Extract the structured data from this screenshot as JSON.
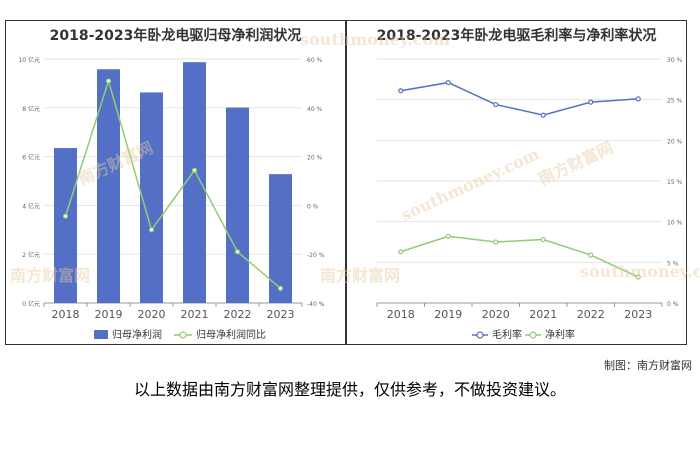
{
  "charts": [
    {
      "title": "2018-2023年卧龙电驱归母净利润状况",
      "chart_data": {
        "type": "bar",
        "categories": [
          "2018",
          "2019",
          "2020",
          "2021",
          "2022",
          "2023"
        ],
        "series": [
          {
            "name": "归母净利润",
            "type": "bar",
            "axis": "left",
            "values": [
              6.35,
              9.58,
              8.63,
              9.87,
              8.01,
              5.28
            ],
            "color": "#5470c6"
          },
          {
            "name": "归母净利润同比",
            "type": "line",
            "axis": "right",
            "values": [
              -4.4,
              51.0,
              -10.0,
              14.4,
              -19.0,
              -34.0
            ],
            "color": "#91cc75"
          }
        ],
        "left_axis": {
          "ticks": [
            "0 亿元",
            "2 亿元",
            "4 亿元",
            "6 亿元",
            "8 亿元",
            "10 亿元"
          ],
          "ylim": [
            0,
            10
          ]
        },
        "right_axis": {
          "ticks": [
            "-40 %",
            "-20 %",
            "0 %",
            "20 %",
            "40 %",
            "60 %"
          ],
          "ylim": [
            -40,
            60
          ]
        },
        "legend_position": "bottom-center",
        "grid": true
      }
    },
    {
      "title": "2018-2023年卧龙电驱毛利率与净利率状况",
      "chart_data": {
        "type": "line",
        "categories": [
          "2018",
          "2019",
          "2020",
          "2021",
          "2022",
          "2023"
        ],
        "series": [
          {
            "name": "毛利率",
            "values": [
              26.1,
              27.1,
              24.4,
              23.1,
              24.7,
              25.1
            ],
            "color": "#5470c6"
          },
          {
            "name": "净利率",
            "values": [
              6.3,
              8.2,
              7.5,
              7.8,
              5.9,
              3.2
            ],
            "color": "#91cc75"
          }
        ],
        "right_axis": {
          "ticks": [
            "0 %",
            "5 %",
            "10 %",
            "15 %",
            "20 %",
            "25 %",
            "30 %"
          ],
          "ylim": [
            0,
            30
          ]
        },
        "legend_position": "bottom-center",
        "grid": true
      }
    }
  ],
  "watermark": {
    "name": "南方财富网",
    "site": "southmoney.com"
  },
  "credit": "制图：南方财富网",
  "note": "以上数据由南方财富网整理提供，仅供参考，不做投资建议。"
}
